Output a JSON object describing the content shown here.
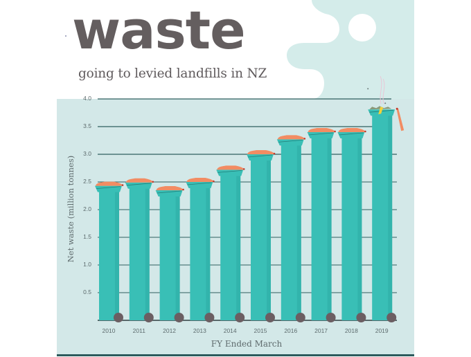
{
  "header": {
    "title": "waste",
    "subtitle": "going to levied landfills in NZ"
  },
  "colors": {
    "panel_bg": "#d3e8e8",
    "cloud_bg": "#d4ecea",
    "bin_body": "#39bfb6",
    "bin_dark": "#2aa79f",
    "lid_orange": "#f28c63",
    "wheel": "#6b5e62",
    "gridline": "#2f5e5e",
    "title_gray": "#645e5f"
  },
  "chart_data": {
    "type": "bar",
    "title": "waste",
    "subtitle": "going to levied landfills in NZ",
    "xlabel": "FY Ended March",
    "ylabel": "Net waste (million tonnes)",
    "categories": [
      "2010",
      "2011",
      "2012",
      "2013",
      "2014",
      "2015",
      "2016",
      "2017",
      "2018",
      "2019"
    ],
    "values": [
      2.43,
      2.49,
      2.35,
      2.5,
      2.72,
      3.0,
      3.27,
      3.4,
      3.4,
      3.81
    ],
    "ylim": [
      0,
      4.0
    ],
    "yticks": [
      "0.5",
      "1.0",
      "1.5",
      "2.0",
      "2.5",
      "3.0",
      "3.5",
      "4.0"
    ],
    "grid": true,
    "legend": null,
    "annotations": [
      "Bars drawn as wheelie bins; 2019 bin overflowing with lid open"
    ]
  },
  "axes": {
    "ylabel": "Net waste (million tonnes)",
    "xlabel": "FY Ended March",
    "yticks": [
      {
        "label": "4.0",
        "value": 4.0
      },
      {
        "label": "3.5",
        "value": 3.5
      },
      {
        "label": "3.0",
        "value": 3.0
      },
      {
        "label": "2.5",
        "value": 2.5
      },
      {
        "label": "2.0",
        "value": 2.0
      },
      {
        "label": "1.5",
        "value": 1.5
      },
      {
        "label": "1.0",
        "value": 1.0
      },
      {
        "label": "0.5",
        "value": 0.5
      }
    ],
    "xticks": [
      "2010",
      "2011",
      "2012",
      "2013",
      "2014",
      "2015",
      "2016",
      "2017",
      "2018",
      "2019"
    ]
  }
}
